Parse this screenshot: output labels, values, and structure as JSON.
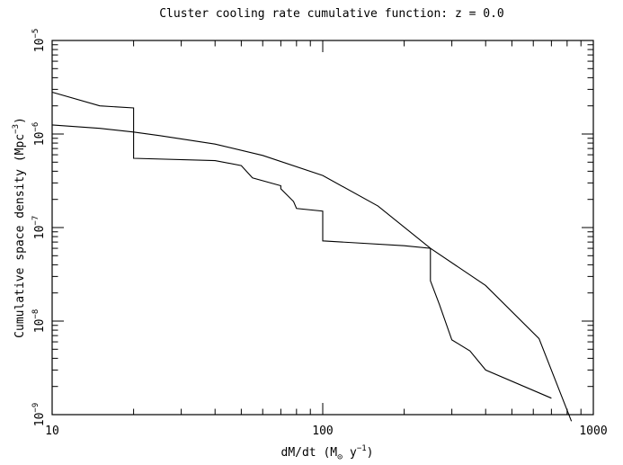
{
  "chart_data": {
    "type": "line",
    "title": "Cluster cooling rate cumulative function: z =  0.0",
    "xlabel": "dM/dt (M⊙ y⁻¹)",
    "xlabel_parts": {
      "pre": "dM/dt (M",
      "sub": "⊙",
      "mid": " y",
      "sup": "−1",
      "post": ")"
    },
    "ylabel": "Cumulative space density (Mpc⁻³)",
    "ylabel_parts": {
      "pre": "Cumulative space density (Mpc",
      "sup": "−3",
      "post": ")"
    },
    "xscale": "log",
    "yscale": "log",
    "xlim": [
      10,
      1000
    ],
    "ylim": [
      1e-09,
      1e-05
    ],
    "grid": false,
    "x_tick_labels": [
      {
        "value": 10,
        "label": "10"
      },
      {
        "value": 100,
        "label": "100"
      },
      {
        "value": 1000,
        "label": "1000"
      }
    ],
    "y_tick_labels": [
      {
        "value": 1e-09,
        "base": "10",
        "exp": "−9"
      },
      {
        "value": 1e-08,
        "base": "10",
        "exp": "−8"
      },
      {
        "value": 1e-07,
        "base": "10",
        "exp": "−7"
      },
      {
        "value": 1e-06,
        "base": "10",
        "exp": "−6"
      },
      {
        "value": 1e-05,
        "base": "10",
        "exp": "−5"
      }
    ],
    "series": [
      {
        "color": "#000000",
        "points": [
          [
            10,
            2.8e-06
          ],
          [
            15,
            2e-06
          ],
          [
            20,
            1.9e-06
          ],
          [
            20,
            5.5e-07
          ],
          [
            40,
            5.2e-07
          ],
          [
            50,
            4.6e-07
          ],
          [
            55,
            3.4e-07
          ],
          [
            70,
            2.8e-07
          ],
          [
            70,
            2.6e-07
          ],
          [
            78,
            1.9e-07
          ],
          [
            80,
            1.6e-07
          ],
          [
            100,
            1.5e-07
          ],
          [
            100,
            7.2e-08
          ],
          [
            200,
            6.4e-08
          ],
          [
            250,
            6e-08
          ],
          [
            250,
            2.7e-08
          ],
          [
            270,
            1.5e-08
          ],
          [
            300,
            6.3e-09
          ],
          [
            350,
            4.8e-09
          ],
          [
            400,
            3e-09
          ],
          [
            700,
            1.5e-09
          ]
        ]
      },
      {
        "color": "#000000",
        "points": [
          [
            10,
            1.25e-06
          ],
          [
            15,
            1.15e-06
          ],
          [
            20,
            1.05e-06
          ],
          [
            25,
            9.6e-07
          ],
          [
            40,
            7.8e-07
          ],
          [
            60,
            5.9e-07
          ],
          [
            100,
            3.6e-07
          ],
          [
            160,
            1.7e-07
          ],
          [
            250,
            6e-08
          ],
          [
            400,
            2.4e-08
          ],
          [
            630,
            6.5e-09
          ],
          [
            830,
            8.5e-10
          ]
        ]
      }
    ]
  }
}
